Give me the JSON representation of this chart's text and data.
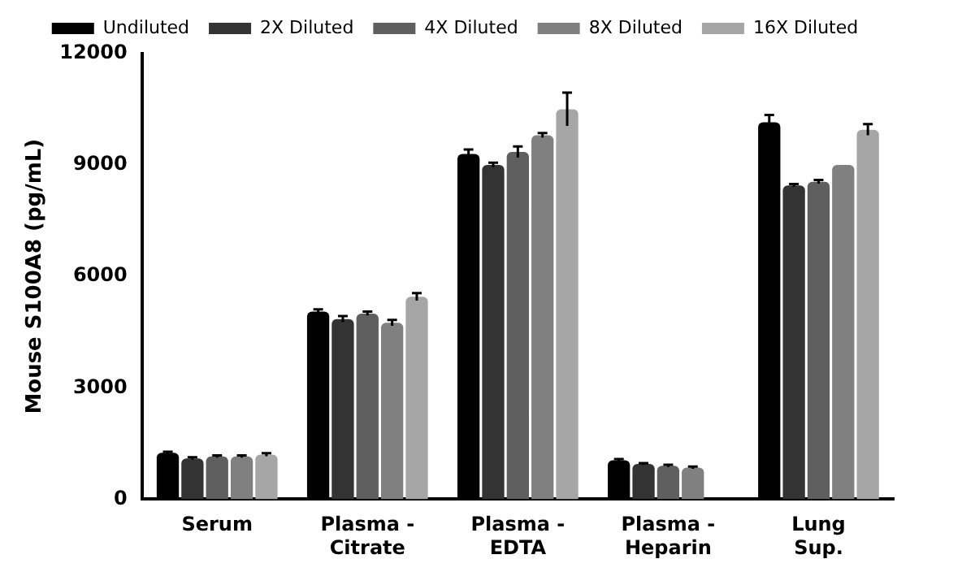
{
  "chart_data": {
    "type": "bar",
    "ylabel": "Mouse S100A8 (pg/mL)",
    "categories": [
      "Serum",
      "Plasma - Citrate",
      "Plasma - EDTA",
      "Plasma - Heparin",
      "Lung Sup."
    ],
    "series": [
      {
        "name": "Undiluted",
        "color": "#000000",
        "values": [
          1250,
          5050,
          9300,
          1050,
          10150
        ],
        "errors": [
          30,
          60,
          120,
          30,
          200
        ]
      },
      {
        "name": "2X Diluted",
        "color": "#333333",
        "values": [
          1100,
          4850,
          9000,
          950,
          8450
        ],
        "errors": [
          30,
          80,
          60,
          20,
          40
        ]
      },
      {
        "name": "4X Diluted",
        "color": "#5f5f5f",
        "values": [
          1150,
          5000,
          9350,
          900,
          8550
        ],
        "errors": [
          30,
          50,
          150,
          30,
          50
        ]
      },
      {
        "name": "8X Diluted",
        "color": "#808080",
        "values": [
          1150,
          4750,
          9800,
          850,
          9000
        ],
        "errors": [
          30,
          80,
          60,
          30,
          null
        ]
      },
      {
        "name": "16X Diluted",
        "color": "#a6a6a6",
        "values": [
          1200,
          5450,
          10500,
          null,
          9950
        ],
        "errors": [
          40,
          100,
          450,
          null,
          150
        ]
      }
    ],
    "ylim": [
      0,
      12000
    ],
    "yticks": [
      0,
      3000,
      6000,
      9000,
      12000
    ],
    "grid": false,
    "legend": "top"
  }
}
